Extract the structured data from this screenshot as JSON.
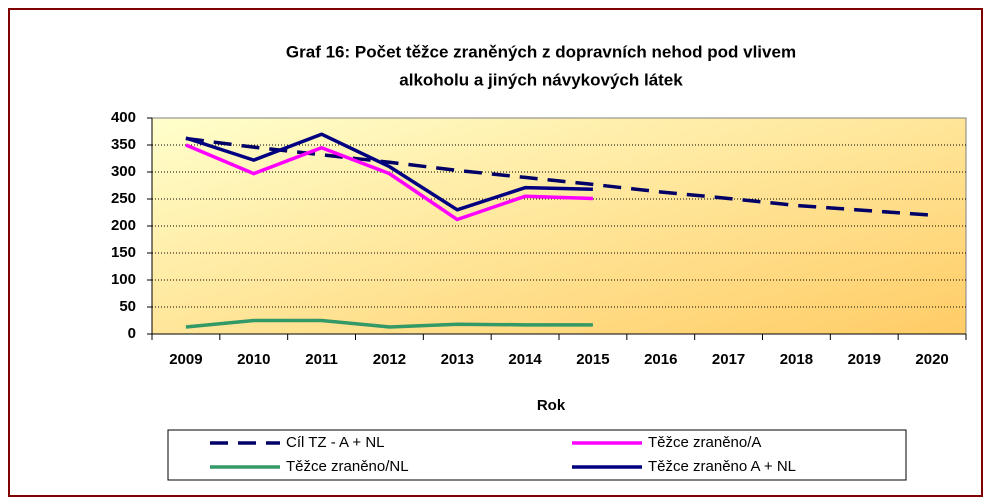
{
  "chart_data": {
    "type": "line",
    "title": [
      "Graf 16: Počet těžce zraněných z dopravních nehod pod vlivem",
      "alkoholu  a jiných návykových látek"
    ],
    "x_label": "Rok",
    "categories": [
      "2009",
      "2010",
      "2011",
      "2012",
      "2013",
      "2014",
      "2015",
      "2016",
      "2017",
      "2018",
      "2019",
      "2020"
    ],
    "series": [
      {
        "name": "Cíl TZ - A + NL",
        "color": "#000066",
        "dashed": true,
        "values": [
          362,
          346,
          332,
          318,
          303,
          290,
          277,
          263,
          251,
          238,
          229,
          220
        ]
      },
      {
        "name": "Těžce zraněno/A",
        "color": "#ff00ff",
        "values": [
          350,
          297,
          345,
          297,
          212,
          255,
          251,
          null,
          null,
          null,
          null,
          null
        ]
      },
      {
        "name": "Těžce zraněno/NL",
        "color": "#339966",
        "values": [
          13,
          25,
          25,
          13,
          18,
          17,
          17,
          null,
          null,
          null,
          null,
          null
        ]
      },
      {
        "name": "Těžce zraněno A + NL",
        "color": "#000080",
        "values": [
          363,
          322,
          370,
          310,
          230,
          271,
          268,
          null,
          null,
          null,
          null,
          null
        ]
      }
    ],
    "ylim": [
      0,
      400
    ],
    "yticks": [
      0,
      50,
      100,
      150,
      200,
      250,
      300,
      350,
      400
    ],
    "grid": true
  }
}
